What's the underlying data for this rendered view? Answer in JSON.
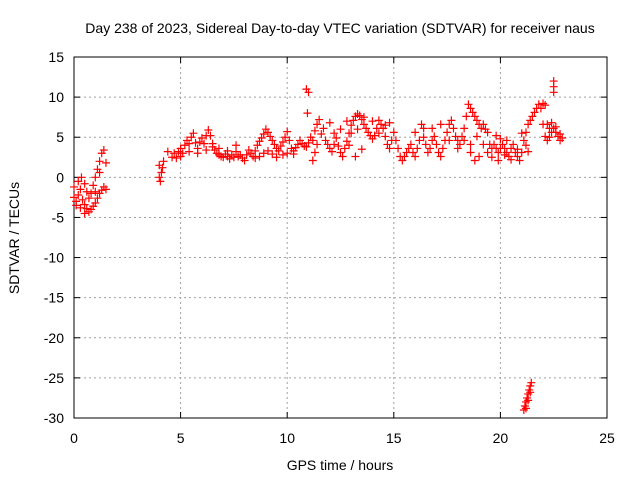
{
  "chart_data": {
    "type": "scatter",
    "title": "Day 238 of 2023, Sidereal Day-to-day VTEC variation (SDTVAR) for receiver naus",
    "xlabel": "GPS time / hours",
    "ylabel": "SDTVAR / TECUs",
    "xlim": [
      0,
      25
    ],
    "ylim": [
      -30,
      15
    ],
    "xticks": [
      0,
      5,
      10,
      15,
      20,
      25
    ],
    "yticks": [
      15,
      10,
      5,
      0,
      -5,
      -10,
      -15,
      -20,
      -25,
      -30
    ],
    "grid": true,
    "marker": "+",
    "color": "#ff0000",
    "series": [
      {
        "name": "SDTVAR",
        "points": [
          [
            0.0,
            -2.5
          ],
          [
            0.1,
            -3.0
          ],
          [
            0.2,
            -2.2
          ],
          [
            0.3,
            -1.5
          ],
          [
            0.4,
            -2.8
          ],
          [
            0.5,
            -3.4
          ],
          [
            0.6,
            -3.9
          ],
          [
            0.7,
            -4.3
          ],
          [
            0.8,
            -4.0
          ],
          [
            0.9,
            -3.6
          ],
          [
            1.0,
            -3.2
          ],
          [
            1.1,
            -2.6
          ],
          [
            1.2,
            -2.0
          ],
          [
            1.3,
            -1.6
          ],
          [
            1.4,
            -1.2
          ],
          [
            1.5,
            -1.5
          ],
          [
            0.0,
            -1.2
          ],
          [
            0.2,
            -0.5
          ],
          [
            0.35,
            0.0
          ],
          [
            0.5,
            -0.8
          ],
          [
            0.6,
            -1.8
          ],
          [
            0.7,
            -2.6
          ],
          [
            0.8,
            -2.0
          ],
          [
            0.9,
            -1.0
          ],
          [
            1.0,
            0.0
          ],
          [
            1.1,
            1.0
          ],
          [
            1.2,
            2.0
          ],
          [
            1.3,
            3.0
          ],
          [
            1.4,
            3.4
          ],
          [
            0.1,
            -3.5
          ],
          [
            0.3,
            -3.8
          ],
          [
            0.5,
            -4.5
          ],
          [
            1.0,
            -1.8
          ],
          [
            1.2,
            0.6
          ],
          [
            1.5,
            1.8
          ],
          [
            4.0,
            0.0
          ],
          [
            4.0,
            1.5
          ],
          [
            4.05,
            -0.5
          ],
          [
            4.1,
            0.6
          ],
          [
            4.15,
            1.2
          ],
          [
            4.2,
            2.0
          ],
          [
            4.4,
            3.2
          ],
          [
            4.6,
            2.5
          ],
          [
            4.7,
            3.0
          ],
          [
            4.8,
            2.4
          ],
          [
            4.9,
            3.2
          ],
          [
            5.0,
            3.6
          ],
          [
            5.1,
            3.0
          ],
          [
            5.2,
            4.0
          ],
          [
            5.3,
            4.6
          ],
          [
            5.4,
            4.2
          ],
          [
            5.5,
            5.0
          ],
          [
            5.6,
            5.5
          ],
          [
            5.7,
            4.3
          ],
          [
            5.8,
            3.6
          ],
          [
            5.9,
            4.4
          ],
          [
            6.0,
            4.9
          ],
          [
            6.1,
            4.2
          ],
          [
            6.2,
            5.2
          ],
          [
            6.3,
            5.9
          ],
          [
            6.4,
            5.2
          ],
          [
            6.5,
            4.2
          ],
          [
            6.6,
            3.4
          ],
          [
            6.7,
            3.0
          ],
          [
            6.8,
            2.8
          ],
          [
            6.9,
            2.6
          ],
          [
            7.0,
            2.5
          ],
          [
            7.1,
            2.9
          ],
          [
            7.2,
            2.6
          ],
          [
            7.3,
            2.3
          ],
          [
            7.4,
            2.8
          ],
          [
            7.5,
            2.5
          ],
          [
            7.6,
            3.2
          ],
          [
            7.7,
            2.6
          ],
          [
            5.0,
            2.6
          ],
          [
            5.4,
            3.2
          ],
          [
            5.8,
            3.0
          ],
          [
            6.2,
            3.4
          ],
          [
            6.5,
            3.8
          ],
          [
            6.8,
            3.6
          ],
          [
            7.2,
            3.3
          ],
          [
            7.6,
            4.0
          ],
          [
            7.8,
            2.8
          ],
          [
            7.9,
            2.4
          ],
          [
            8.0,
            2.1
          ],
          [
            8.1,
            2.8
          ],
          [
            8.2,
            3.4
          ],
          [
            8.3,
            3.0
          ],
          [
            8.4,
            2.6
          ],
          [
            8.5,
            3.3
          ],
          [
            8.6,
            4.0
          ],
          [
            8.7,
            4.5
          ],
          [
            8.8,
            4.9
          ],
          [
            8.9,
            5.4
          ],
          [
            9.0,
            6.0
          ],
          [
            9.1,
            5.6
          ],
          [
            9.2,
            5.1
          ],
          [
            9.3,
            4.6
          ],
          [
            9.4,
            4.1
          ],
          [
            9.5,
            3.6
          ],
          [
            9.6,
            3.3
          ],
          [
            9.7,
            3.9
          ],
          [
            9.8,
            4.4
          ],
          [
            9.9,
            5.0
          ],
          [
            10.0,
            5.7
          ],
          [
            10.1,
            4.6
          ],
          [
            10.2,
            3.6
          ],
          [
            10.3,
            3.3
          ],
          [
            10.4,
            3.7
          ],
          [
            10.5,
            4.1
          ],
          [
            10.6,
            4.6
          ],
          [
            10.7,
            4.2
          ],
          [
            10.8,
            3.9
          ],
          [
            8.5,
            2.4
          ],
          [
            8.7,
            2.6
          ],
          [
            8.9,
            3.0
          ],
          [
            9.1,
            3.3
          ],
          [
            9.3,
            2.9
          ],
          [
            9.5,
            2.5
          ],
          [
            9.8,
            2.8
          ],
          [
            10.0,
            3.0
          ],
          [
            10.3,
            2.9
          ],
          [
            10.9,
            11.0
          ],
          [
            11.0,
            10.6
          ],
          [
            10.95,
            8.0
          ],
          [
            10.9,
            3.8
          ],
          [
            11.0,
            4.3
          ],
          [
            11.1,
            5.0
          ],
          [
            11.2,
            4.6
          ],
          [
            11.3,
            5.8
          ],
          [
            11.4,
            6.6
          ],
          [
            11.5,
            7.2
          ],
          [
            11.4,
            4.1
          ],
          [
            11.3,
            3.1
          ],
          [
            11.2,
            2.1
          ],
          [
            11.6,
            5.4
          ],
          [
            11.7,
            6.1
          ],
          [
            11.8,
            4.6
          ],
          [
            11.9,
            4.1
          ],
          [
            12.0,
            3.6
          ],
          [
            12.0,
            6.8
          ],
          [
            12.1,
            3.2
          ],
          [
            12.2,
            4.1
          ],
          [
            12.3,
            4.9
          ],
          [
            12.4,
            3.9
          ],
          [
            12.5,
            3.1
          ],
          [
            12.6,
            2.6
          ],
          [
            12.7,
            3.6
          ],
          [
            12.8,
            4.5
          ],
          [
            12.9,
            5.5
          ],
          [
            13.0,
            6.5
          ],
          [
            13.1,
            7.1
          ],
          [
            13.2,
            7.6
          ],
          [
            13.3,
            7.9
          ],
          [
            13.4,
            7.7
          ],
          [
            13.5,
            7.2
          ],
          [
            13.6,
            6.6
          ],
          [
            13.7,
            6.1
          ],
          [
            13.8,
            5.6
          ],
          [
            13.9,
            5.2
          ],
          [
            14.0,
            4.8
          ],
          [
            14.1,
            5.2
          ],
          [
            14.2,
            6.1
          ],
          [
            14.3,
            7.1
          ],
          [
            14.4,
            6.6
          ],
          [
            14.5,
            6.1
          ],
          [
            14.6,
            5.1
          ],
          [
            14.7,
            4.1
          ],
          [
            14.8,
            3.6
          ],
          [
            14.9,
            4.6
          ],
          [
            15.0,
            5.6
          ],
          [
            15.1,
            4.6
          ],
          [
            15.2,
            3.6
          ],
          [
            15.3,
            2.6
          ],
          [
            15.4,
            2.1
          ],
          [
            15.5,
            2.6
          ],
          [
            15.6,
            3.1
          ],
          [
            12.5,
            6.0
          ],
          [
            12.8,
            7.0
          ],
          [
            13.0,
            5.5
          ],
          [
            13.3,
            6.0
          ],
          [
            13.6,
            7.5
          ],
          [
            14.0,
            7.0
          ],
          [
            14.3,
            5.5
          ],
          [
            14.6,
            6.5
          ],
          [
            14.8,
            6.8
          ],
          [
            12.2,
            5.5
          ],
          [
            12.9,
            4.0
          ],
          [
            13.2,
            2.6
          ],
          [
            13.5,
            3.5
          ],
          [
            15.7,
            3.6
          ],
          [
            15.8,
            4.1
          ],
          [
            15.9,
            3.1
          ],
          [
            16.0,
            2.6
          ],
          [
            16.1,
            3.6
          ],
          [
            16.2,
            4.6
          ],
          [
            16.3,
            6.6
          ],
          [
            16.4,
            6.1
          ],
          [
            16.5,
            4.1
          ],
          [
            16.6,
            3.1
          ],
          [
            16.7,
            3.6
          ],
          [
            16.8,
            4.6
          ],
          [
            16.9,
            5.1
          ],
          [
            17.0,
            4.1
          ],
          [
            17.1,
            3.1
          ],
          [
            17.2,
            2.6
          ],
          [
            17.3,
            3.6
          ],
          [
            17.4,
            4.6
          ],
          [
            17.5,
            5.6
          ],
          [
            17.6,
            6.6
          ],
          [
            17.7,
            7.1
          ],
          [
            17.8,
            6.1
          ],
          [
            17.9,
            5.1
          ],
          [
            18.0,
            4.6
          ],
          [
            18.1,
            4.1
          ],
          [
            18.2,
            5.1
          ],
          [
            18.3,
            6.1
          ],
          [
            18.4,
            7.6
          ],
          [
            18.5,
            9.1
          ],
          [
            18.6,
            8.6
          ],
          [
            18.7,
            8.1
          ],
          [
            18.8,
            7.6
          ],
          [
            18.9,
            7.1
          ],
          [
            19.0,
            6.6
          ],
          [
            19.1,
            6.1
          ],
          [
            19.2,
            6.6
          ],
          [
            19.3,
            6.0
          ],
          [
            19.4,
            5.6
          ],
          [
            16.0,
            5.6
          ],
          [
            16.4,
            5.0
          ],
          [
            16.8,
            6.1
          ],
          [
            17.2,
            6.6
          ],
          [
            17.6,
            4.6
          ],
          [
            18.0,
            3.6
          ],
          [
            18.3,
            4.6
          ],
          [
            18.6,
            4.1
          ],
          [
            18.9,
            5.1
          ],
          [
            19.2,
            4.1
          ],
          [
            19.4,
            3.1
          ],
          [
            19.0,
            2.6
          ],
          [
            18.8,
            2.1
          ],
          [
            18.6,
            3.1
          ],
          [
            19.5,
            4.1
          ],
          [
            19.6,
            3.6
          ],
          [
            19.7,
            4.1
          ],
          [
            19.8,
            3.6
          ],
          [
            19.9,
            3.1
          ],
          [
            20.0,
            3.6
          ],
          [
            20.1,
            4.1
          ],
          [
            20.2,
            3.6
          ],
          [
            20.3,
            3.1
          ],
          [
            20.4,
            2.6
          ],
          [
            20.5,
            3.6
          ],
          [
            20.6,
            4.1
          ],
          [
            20.7,
            3.1
          ],
          [
            20.8,
            2.6
          ],
          [
            20.9,
            2.1
          ],
          [
            21.0,
            3.1
          ],
          [
            21.1,
            4.6
          ],
          [
            21.2,
            5.6
          ],
          [
            21.3,
            6.6
          ],
          [
            21.4,
            7.1
          ],
          [
            21.5,
            7.6
          ],
          [
            21.6,
            8.1
          ],
          [
            21.7,
            8.6
          ],
          [
            21.8,
            9.1
          ],
          [
            21.9,
            8.6
          ],
          [
            22.0,
            9.2
          ],
          [
            22.1,
            9.0
          ],
          [
            19.6,
            2.5
          ],
          [
            19.9,
            2.1
          ],
          [
            20.2,
            2.8
          ],
          [
            20.5,
            2.2
          ],
          [
            20.8,
            3.5
          ],
          [
            21.0,
            5.5
          ],
          [
            21.2,
            4.0
          ],
          [
            21.3,
            3.2
          ],
          [
            20.0,
            4.8
          ],
          [
            19.8,
            5.2
          ],
          [
            20.3,
            4.6
          ],
          [
            22.2,
            6.6
          ],
          [
            22.3,
            6.1
          ],
          [
            22.4,
            5.6
          ],
          [
            22.5,
            6.1
          ],
          [
            22.6,
            5.6
          ],
          [
            22.7,
            5.1
          ],
          [
            22.8,
            4.6
          ],
          [
            22.9,
            4.9
          ],
          [
            22.1,
            5.1
          ],
          [
            22.0,
            6.6
          ],
          [
            22.2,
            4.6
          ],
          [
            22.4,
            6.8
          ],
          [
            22.6,
            6.3
          ],
          [
            22.8,
            5.4
          ],
          [
            22.3,
            5.0
          ],
          [
            22.5,
            12.0
          ],
          [
            22.5,
            11.3
          ],
          [
            22.5,
            10.6
          ],
          [
            21.1,
            -29.0
          ],
          [
            21.15,
            -28.5
          ],
          [
            21.2,
            -28.0
          ],
          [
            21.25,
            -27.5
          ],
          [
            21.3,
            -27.0
          ],
          [
            21.35,
            -26.5
          ],
          [
            21.4,
            -26.0
          ],
          [
            21.45,
            -25.6
          ],
          [
            21.2,
            -28.8
          ],
          [
            21.3,
            -27.8
          ],
          [
            21.4,
            -26.8
          ]
        ]
      }
    ]
  }
}
